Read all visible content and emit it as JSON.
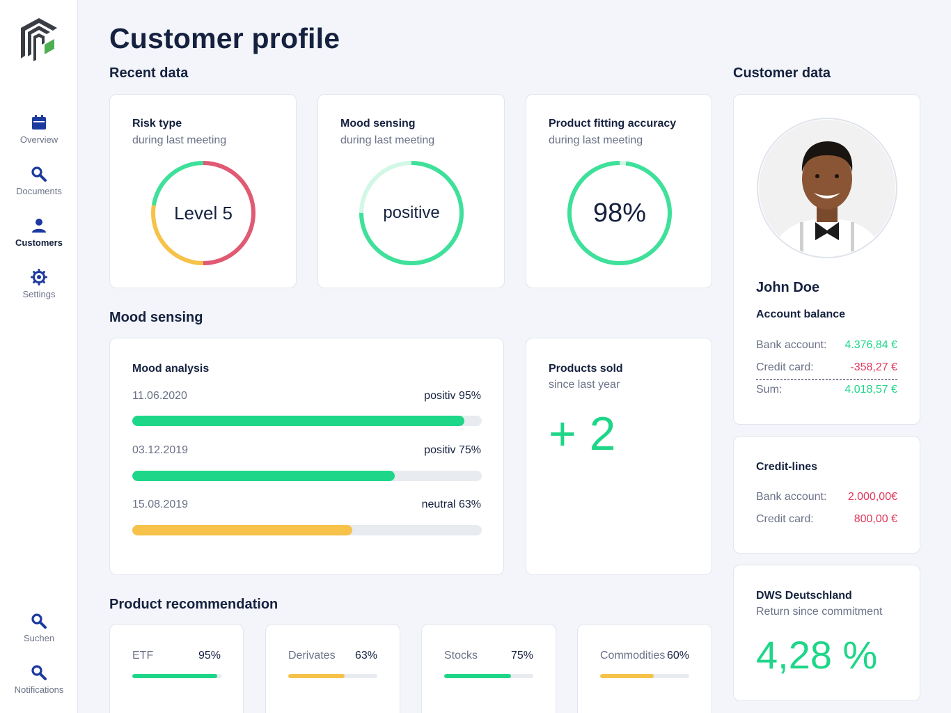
{
  "colors": {
    "green": "#1ed688",
    "green_ring": "#3ee09a",
    "green_light": "#d3f7e6",
    "yellow": "#f7c24a",
    "red": "#e05a73",
    "navy": "#15213f",
    "nav_active": "#1c3a9e"
  },
  "sidebar": {
    "items": [
      {
        "label": "Overview",
        "icon": "calendar-icon"
      },
      {
        "label": "Documents",
        "icon": "search-icon"
      },
      {
        "label": "Customers",
        "icon": "user-icon"
      },
      {
        "label": "Settings",
        "icon": "gear-icon"
      }
    ],
    "bottom_items": [
      {
        "label": "Suchen",
        "icon": "search-icon"
      },
      {
        "label": "Notifications",
        "icon": "search-icon"
      }
    ]
  },
  "page": {
    "title": "Customer profile"
  },
  "sections": {
    "recent": "Recent data",
    "mood": "Mood sensing",
    "recommendation": "Product recommendation",
    "customer": "Customer data"
  },
  "recent_cards": [
    {
      "title": "Risk type",
      "subtitle": "during last meeting",
      "value": "Level 5"
    },
    {
      "title": "Mood sensing",
      "subtitle": "during last meeting",
      "value": "positive"
    },
    {
      "title": "Product fitting accuracy",
      "subtitle": "during last meeting",
      "value": "98%",
      "percent": 98
    }
  ],
  "mood_analysis": {
    "title": "Mood analysis",
    "rows": [
      {
        "date": "11.06.2020",
        "label": "positiv 95%",
        "percent": 95,
        "color": "#1ed688"
      },
      {
        "date": "03.12.2019",
        "label": "positiv 75%",
        "percent": 75,
        "color": "#1ed688"
      },
      {
        "date": "15.08.2019",
        "label": "neutral 63%",
        "percent": 63,
        "color": "#f7c24a"
      }
    ]
  },
  "products_sold": {
    "title": "Products sold",
    "subtitle": "since last year",
    "value": "+ 2"
  },
  "recommendations": [
    {
      "name": "ETF",
      "value": "95%",
      "percent": 95,
      "color": "#1ed688"
    },
    {
      "name": "Derivates",
      "value": "63%",
      "percent": 63,
      "color": "#f7c24a"
    },
    {
      "name": "Stocks",
      "value": "75%",
      "percent": 75,
      "color": "#1ed688"
    },
    {
      "name": "Commodities",
      "value": "60%",
      "percent": 60,
      "color": "#f7c24a"
    }
  ],
  "customer": {
    "name": "John Doe",
    "account_balance": {
      "title": "Account balance",
      "bank_label": "Bank account:",
      "bank_value": "4.376,84 €",
      "credit_label": "Credit card:",
      "credit_value": "-358,27 €",
      "sum_label": "Sum:",
      "sum_value": "4.018,57 €"
    },
    "credit_lines": {
      "title": "Credit-lines",
      "bank_label": "Bank account:",
      "bank_value": "2.000,00€",
      "credit_label": "Credit card:",
      "credit_value": "800,00 €"
    },
    "fund": {
      "title": "DWS Deutschland",
      "subtitle": "Return since commitment",
      "value": "4,28 %"
    }
  }
}
